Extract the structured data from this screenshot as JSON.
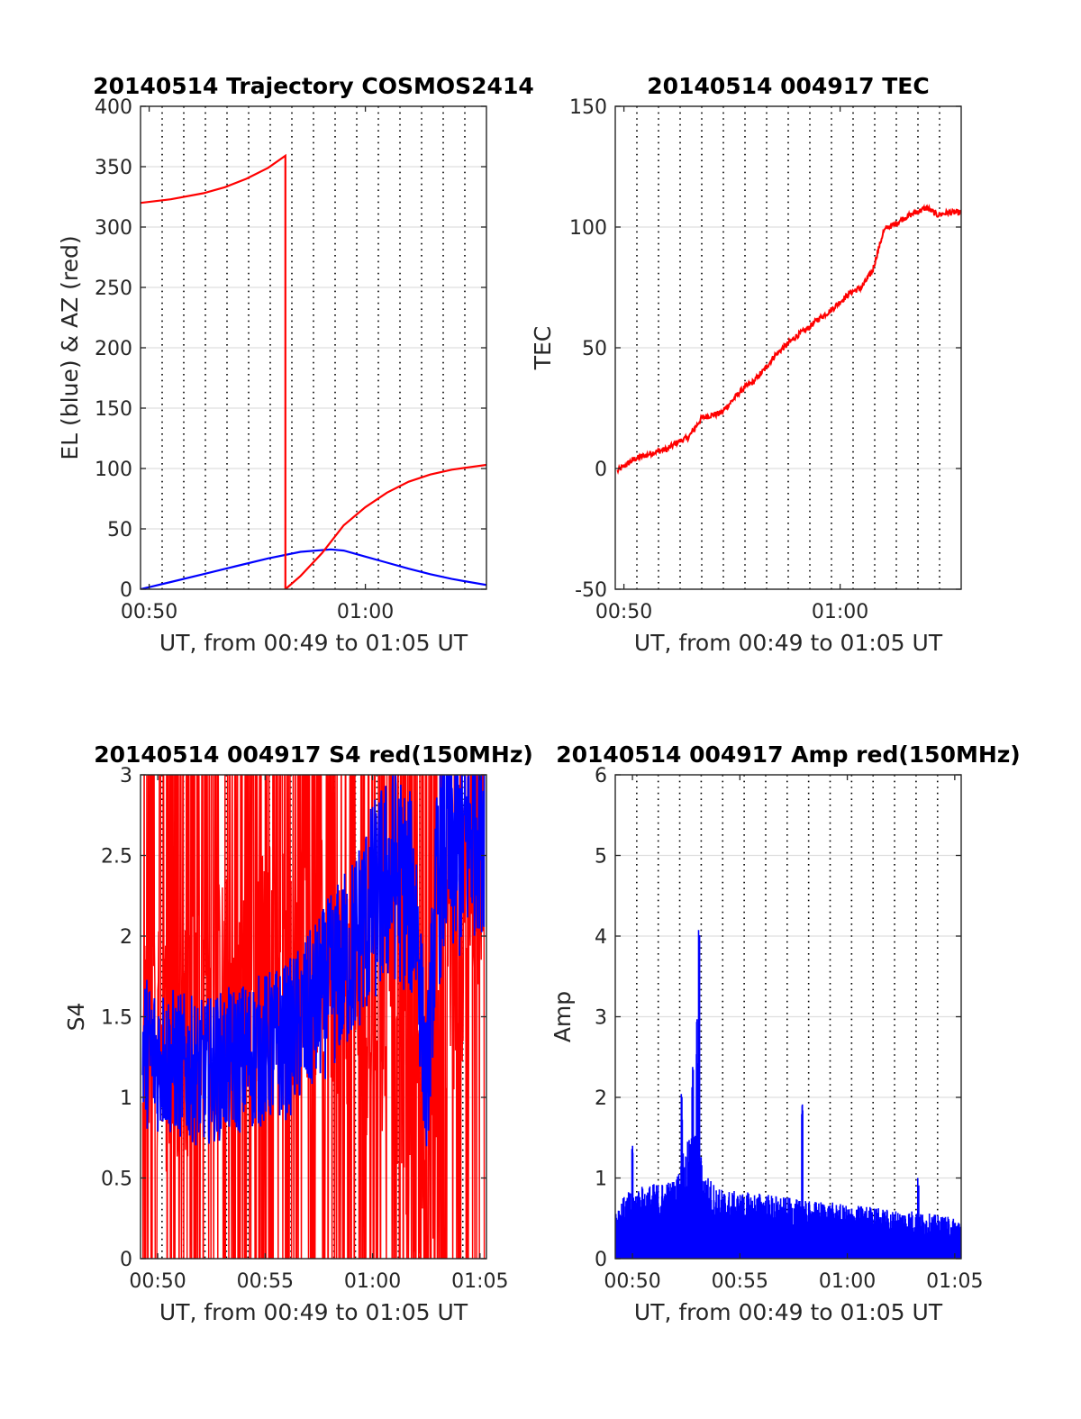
{
  "figure": {
    "background": "#ffffff"
  },
  "chart_data": [
    {
      "id": "trajectory",
      "type": "line",
      "title": "20140514 Trajectory COSMOS2414",
      "xlabel": "UT, from 00:49 to 01:05 UT",
      "ylabel": "EL (blue) & AZ (red)",
      "x_unit": "minutes after 00:00 UT",
      "xlim": [
        49.6,
        65.6
      ],
      "ylim": [
        0,
        400
      ],
      "yticks": [
        0,
        50,
        100,
        150,
        200,
        250,
        300,
        350,
        400
      ],
      "xticks": [
        {
          "value": 50,
          "label": "00:50"
        },
        {
          "value": 60,
          "label": "01:00"
        }
      ],
      "vlines": [
        50.6,
        51.6,
        52.6,
        53.6,
        54.6,
        55.6,
        56.6,
        57.6,
        58.6,
        59.6,
        60.6,
        61.6,
        62.6,
        63.6,
        64.6
      ],
      "grid": true,
      "series": [
        {
          "color": "#0000ff",
          "x": [
            49.6,
            51,
            52.5,
            54,
            55.5,
            57,
            58.4,
            59,
            60,
            61,
            62,
            63,
            64,
            65.6
          ],
          "y": [
            0,
            6,
            12.5,
            19,
            25.5,
            31,
            33,
            32,
            27,
            22,
            17,
            12.5,
            8.5,
            3.5
          ]
        },
        {
          "color": "#ff0000",
          "x": [
            49.6,
            51,
            52.5,
            53.5,
            54.5,
            55.5,
            56.3,
            56.3,
            57,
            58,
            59,
            60,
            61,
            62,
            63,
            64,
            65.6
          ],
          "y": [
            320,
            323,
            328,
            333,
            340,
            349,
            359,
            0,
            11,
            30,
            53,
            68,
            80,
            89,
            95,
            99,
            103
          ]
        }
      ]
    },
    {
      "id": "tec",
      "type": "line",
      "title": "20140514 004917 TEC",
      "xlabel": "UT, from 00:49 to 01:05 UT",
      "ylabel": "TEC",
      "x_unit": "minutes after 00:00 UT",
      "xlim": [
        49.6,
        65.6
      ],
      "ylim": [
        -50,
        150
      ],
      "yticks": [
        -50,
        0,
        50,
        100,
        150
      ],
      "xticks": [
        {
          "value": 50,
          "label": "00:50"
        },
        {
          "value": 60,
          "label": "01:00"
        }
      ],
      "vlines": [
        50.6,
        51.6,
        52.6,
        53.6,
        54.6,
        55.6,
        56.6,
        57.6,
        58.6,
        59.6,
        60.6,
        61.6,
        62.6,
        63.6,
        64.6
      ],
      "grid": true,
      "noise": 1.2,
      "series": [
        {
          "color": "#ff0000",
          "x": [
            49.7,
            50.5,
            51.5,
            52,
            52.5,
            53,
            53.6,
            54,
            54.5,
            55,
            55.5,
            56,
            56.5,
            57,
            57.5,
            58,
            58.5,
            59,
            59.5,
            60,
            60.5,
            61,
            61.5,
            62,
            62.2,
            62.5,
            63,
            63.5,
            64,
            64.5,
            65,
            65.6
          ],
          "y": [
            -1,
            4,
            7,
            8,
            11,
            13,
            21,
            22,
            23,
            28,
            33,
            36,
            41,
            47,
            51,
            55,
            58,
            62,
            65,
            69,
            73,
            75,
            82,
            98,
            100,
            101,
            104,
            106,
            108,
            105,
            106,
            106
          ]
        }
      ]
    },
    {
      "id": "s4",
      "type": "line",
      "title": "20140514 004917 S4 red(150MHz)",
      "xlabel": "UT, from 00:49 to 01:05 UT",
      "ylabel": "S4",
      "x_unit": "minutes after 00:00 UT",
      "xlim": [
        49.2,
        65.3
      ],
      "ylim": [
        0,
        3
      ],
      "yticks": [
        0,
        0.5,
        1,
        1.5,
        2,
        2.5,
        3
      ],
      "xticks": [
        {
          "value": 50,
          "label": "00:50"
        },
        {
          "value": 55,
          "label": "00:55"
        },
        {
          "value": 60,
          "label": "01:00"
        },
        {
          "value": 65,
          "label": "01:05"
        }
      ],
      "vlines": [
        50.2,
        51.2,
        52.2,
        53.2,
        54.2,
        55.2,
        56.2,
        57.2,
        58.2,
        59.2,
        60.2,
        61.2,
        62.2,
        63.2,
        64.2
      ],
      "grid": true,
      "series": [
        {
          "color": "#ff0000",
          "style": "spiky",
          "x": [
            49.3,
            52,
            55,
            57,
            59,
            61,
            62.5,
            63.5,
            65.2
          ],
          "y": [
            1.2,
            1.5,
            1.8,
            1.9,
            1.7,
            1.3,
            0.5,
            1.6,
            2.6
          ]
        },
        {
          "color": "#0000ff",
          "style": "noisy",
          "x": [
            49.3,
            50,
            51,
            52,
            53,
            54,
            55,
            56,
            57,
            58,
            59,
            60,
            61,
            62,
            62.5,
            63,
            63.5,
            64,
            65,
            65.2
          ],
          "y": [
            1.3,
            1.25,
            1.2,
            1.15,
            1.2,
            1.25,
            1.3,
            1.35,
            1.5,
            1.7,
            1.9,
            2.2,
            2.4,
            2.2,
            1.0,
            2.3,
            2.6,
            2.5,
            2.8,
            2.7
          ]
        }
      ]
    },
    {
      "id": "amp",
      "type": "line",
      "title": "20140514 004917 Amp red(150MHz)",
      "xlabel": "UT, from 00:49 to 01:05 UT",
      "ylabel": "Amp",
      "x_unit": "minutes after 00:00 UT",
      "xlim": [
        49.2,
        65.3
      ],
      "ylim": [
        0,
        6
      ],
      "yticks": [
        0,
        1,
        2,
        3,
        4,
        5,
        6
      ],
      "xticks": [
        {
          "value": 50,
          "label": "00:50"
        },
        {
          "value": 55,
          "label": "00:55"
        },
        {
          "value": 60,
          "label": "01:00"
        },
        {
          "value": 65,
          "label": "01:05"
        }
      ],
      "vlines": [
        50.2,
        51.2,
        52.2,
        53.2,
        54.2,
        55.2,
        56.2,
        57.2,
        58.2,
        59.2,
        60.2,
        61.2,
        62.2,
        63.2,
        64.2
      ],
      "grid": true,
      "peaks": [
        [
          50.0,
          1.4
        ],
        [
          52.3,
          2.1
        ],
        [
          52.8,
          2.6
        ],
        [
          53.0,
          3.0
        ],
        [
          53.1,
          4.1
        ],
        [
          57.9,
          2.1
        ],
        [
          63.3,
          1.1
        ]
      ],
      "series": [
        {
          "color": "#0000ff",
          "style": "bars",
          "x": [
            49.2,
            50,
            51,
            52,
            52.5,
            53,
            53.3,
            54,
            55,
            56,
            57,
            58,
            59,
            60,
            61,
            62,
            63,
            64,
            65.3
          ],
          "y": [
            0.6,
            0.8,
            0.85,
            0.9,
            1.3,
            1.5,
            1.0,
            0.8,
            0.75,
            0.75,
            0.7,
            0.65,
            0.65,
            0.6,
            0.6,
            0.55,
            0.55,
            0.5,
            0.45
          ]
        }
      ]
    }
  ]
}
